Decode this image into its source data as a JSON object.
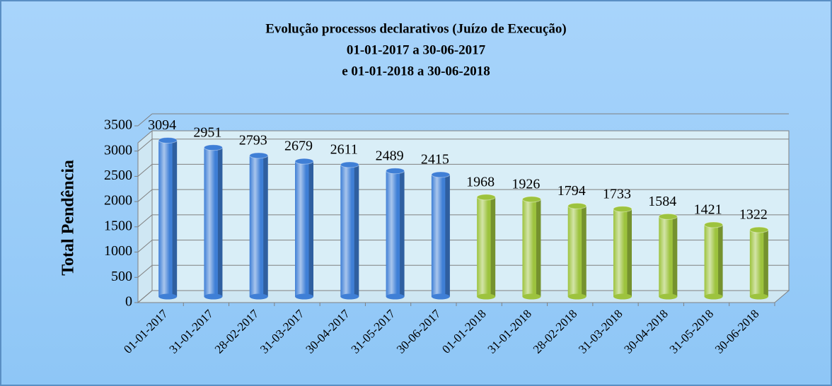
{
  "chart_data": {
    "type": "bar",
    "title": [
      "Evolução processos declarativos (Juízo de Execução)",
      "01-01-2017 a 30-06-2017",
      "e 01-01-2018 a 30-06-2018"
    ],
    "y_label": "Total Pendência",
    "categories": [
      "01-01-2017",
      "31-01-2017",
      "28-02-2017",
      "31-03-2017",
      "30-04-2017",
      "31-05-2017",
      "30-06-2017",
      "01-01-2018",
      "31-01-2018",
      "28-02-2018",
      "31-03-2018",
      "30-04-2018",
      "31-05-2018",
      "30-06-2018"
    ],
    "values": [
      3094,
      2951,
      2793,
      2679,
      2611,
      2489,
      2415,
      1968,
      1926,
      1794,
      1733,
      1584,
      1421,
      1322
    ],
    "colors": [
      "#3f7fd6",
      "#3f7fd6",
      "#3f7fd6",
      "#3f7fd6",
      "#3f7fd6",
      "#3f7fd6",
      "#3f7fd6",
      "#9dc33e",
      "#9dc33e",
      "#9dc33e",
      "#9dc33e",
      "#9dc33e",
      "#9dc33e",
      "#9dc33e"
    ],
    "ylim": [
      0,
      3500
    ],
    "yticks": [
      0,
      500,
      1000,
      1500,
      2000,
      2500,
      3000,
      3500
    ],
    "grid": true
  }
}
